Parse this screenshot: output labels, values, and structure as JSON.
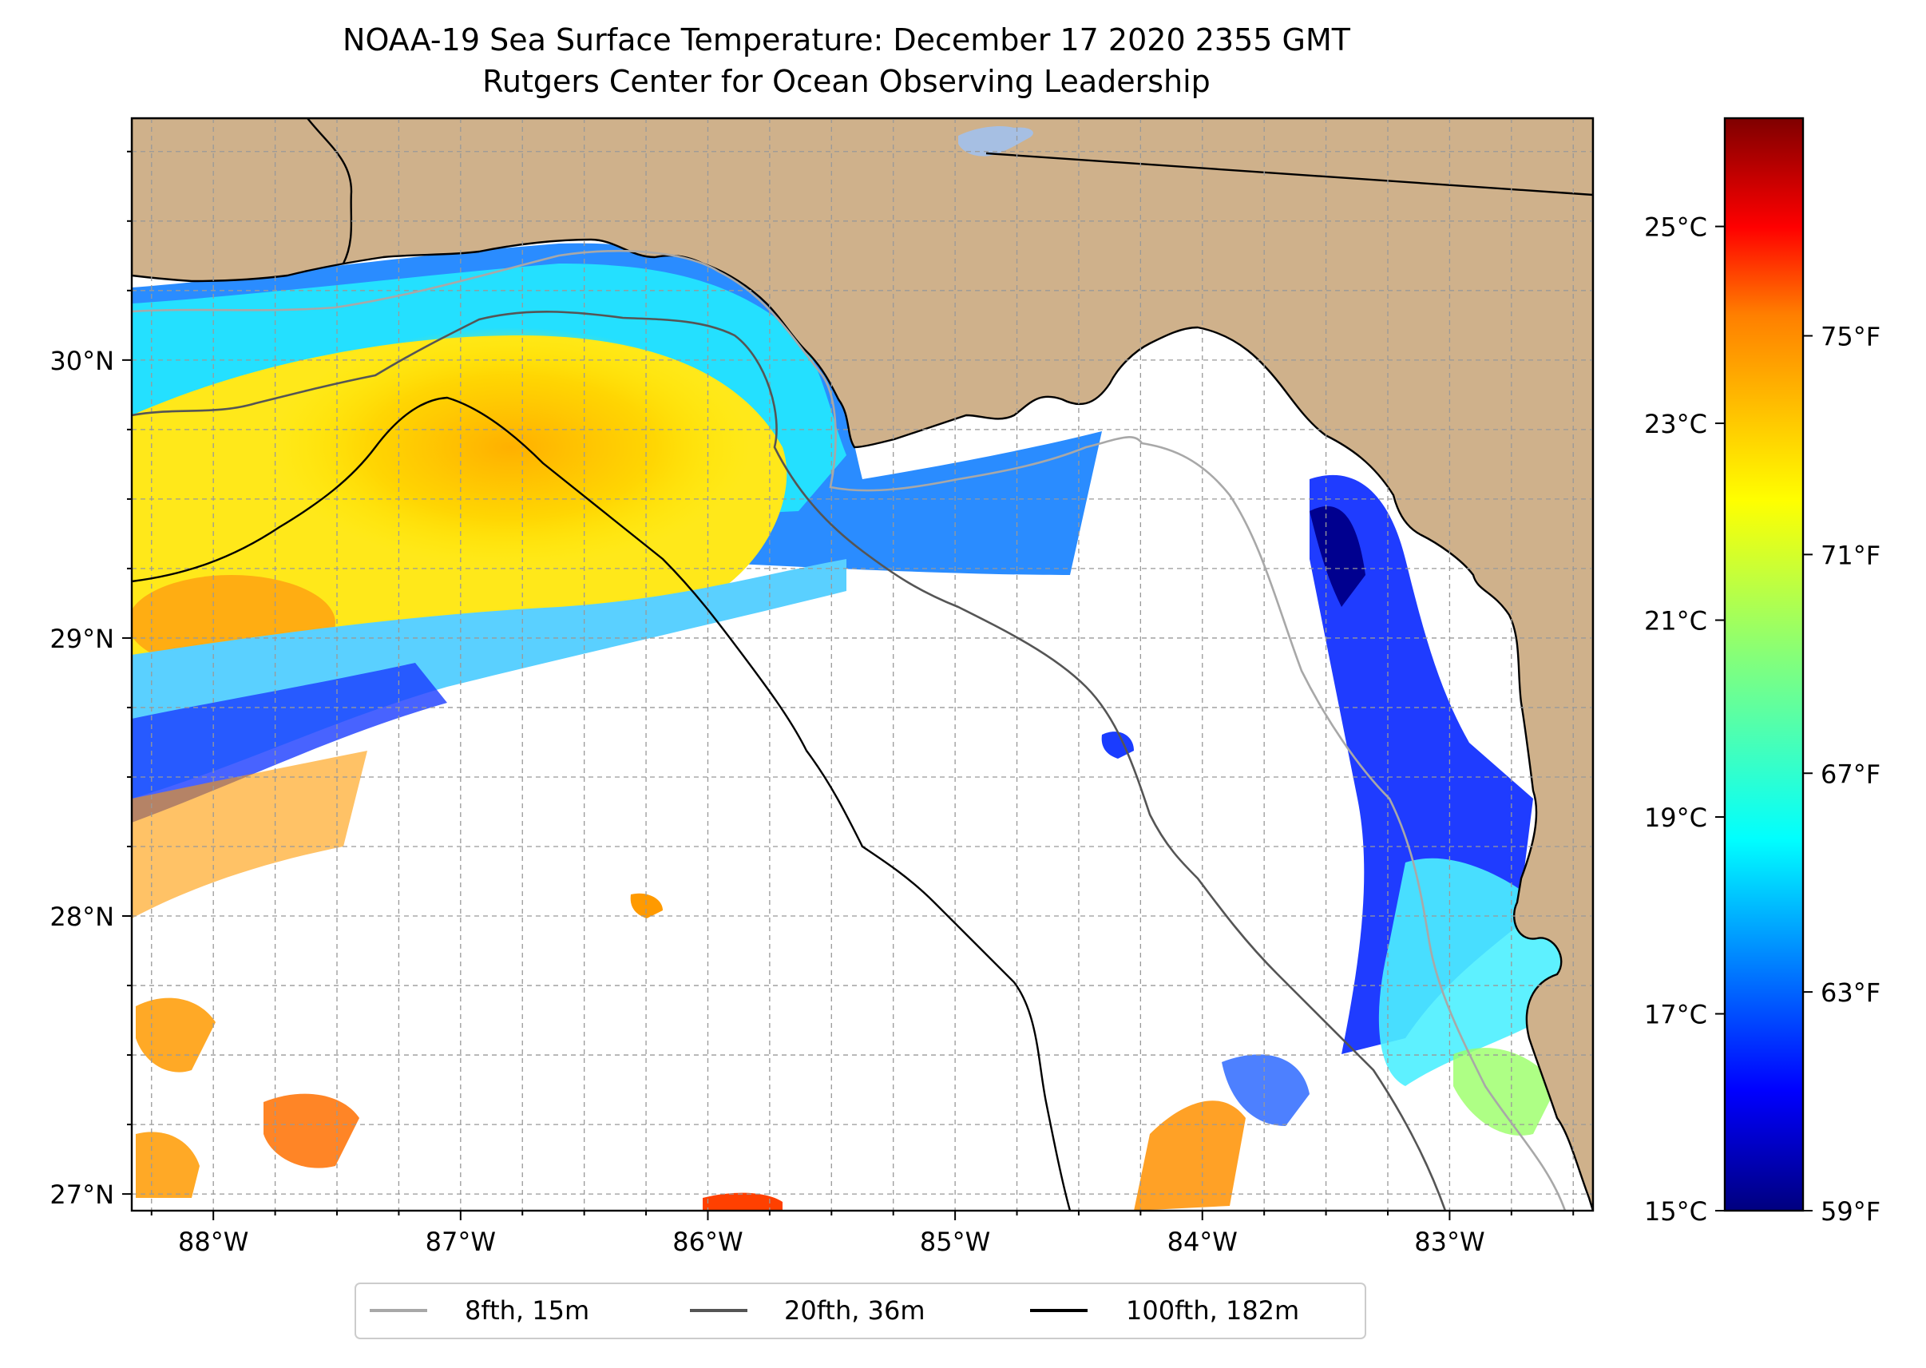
{
  "title": {
    "line1": "NOAA-19 Sea Surface Temperature: December 17 2020 2355 GMT",
    "line2": "Rutgers Center for Ocean Observing Leadership"
  },
  "map": {
    "land_color": "#cfb18b",
    "ocean_nodata_color": "#ffffff",
    "lake_color": "#a6bfe3",
    "extent": {
      "lon_min": -88.33,
      "lon_max": -82.42,
      "lat_min": 26.94,
      "lat_max": 30.87
    },
    "lon_ticks": [
      {
        "lon": -88,
        "label": "88°W"
      },
      {
        "lon": -87,
        "label": "87°W"
      },
      {
        "lon": -86,
        "label": "86°W"
      },
      {
        "lon": -85,
        "label": "85°W"
      },
      {
        "lon": -84,
        "label": "84°W"
      },
      {
        "lon": -83,
        "label": "83°W"
      }
    ],
    "lat_ticks": [
      {
        "lat": 30,
        "label": "30°N"
      },
      {
        "lat": 29,
        "label": "29°N"
      },
      {
        "lat": 28,
        "label": "28°N"
      },
      {
        "lat": 27,
        "label": "27°N"
      }
    ]
  },
  "colorbar": {
    "colormap": "jet",
    "celsius_min": 15,
    "celsius_max": 26.1,
    "celsius_ticks": [
      {
        "value": 25,
        "label": "25°C"
      },
      {
        "value": 23,
        "label": "23°C"
      },
      {
        "value": 21,
        "label": "21°C"
      },
      {
        "value": 19,
        "label": "19°C"
      },
      {
        "value": 17,
        "label": "17°C"
      },
      {
        "value": 15,
        "label": "15°C"
      }
    ],
    "fahrenheit_ticks": [
      {
        "value": 75,
        "label": "75°F"
      },
      {
        "value": 71,
        "label": "71°F"
      },
      {
        "value": 67,
        "label": "67°F"
      },
      {
        "value": 63,
        "label": "63°F"
      },
      {
        "value": 59,
        "label": "59°F"
      }
    ],
    "stops": [
      "#00007f",
      "#0000ff",
      "#007fff",
      "#00ffff",
      "#7fff7f",
      "#ffff00",
      "#ff7f00",
      "#ff0000",
      "#7f0000"
    ]
  },
  "legend": {
    "items": [
      {
        "label": "8fth, 15m",
        "color": "#a8a8a8"
      },
      {
        "label": "20fth, 36m",
        "color": "#555555"
      },
      {
        "label": "100fth, 182m",
        "color": "#000000"
      }
    ]
  }
}
